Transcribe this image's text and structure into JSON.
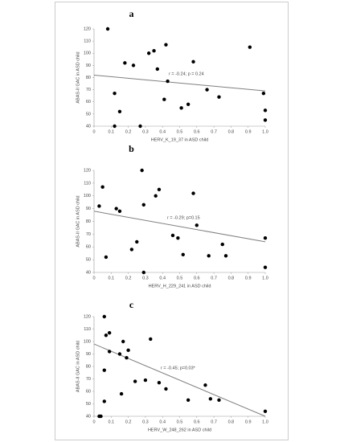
{
  "chart_data": [
    {
      "type": "scatter",
      "title": "a",
      "x_label": "HERV_K_19_37 in ASD child",
      "y_label": "ABAS-II GAC in ASD child",
      "annotation": "r = -0.24; p = 0.24",
      "x": [
        0.08,
        0.12,
        0.15,
        0.12,
        0.18,
        0.23,
        0.32,
        0.35,
        0.37,
        0.42,
        0.43,
        0.41,
        0.27,
        0.51,
        0.55,
        0.58,
        0.66,
        0.73,
        0.91,
        0.99,
        1.0,
        1.0
      ],
      "values": [
        120,
        67,
        52,
        40,
        92,
        90,
        100,
        102,
        87,
        107,
        77,
        62,
        40,
        55,
        58,
        93,
        70,
        64,
        105,
        67,
        53,
        45
      ],
      "trend": {
        "x": [
          0,
          1
        ],
        "y": [
          82,
          69
        ]
      },
      "color": "#000000",
      "trend_color": "#7f7f7f",
      "xlim": [
        0,
        1
      ],
      "ylim": [
        40,
        120
      ],
      "xticks": [
        0,
        0.1,
        0.2,
        0.3,
        0.4,
        0.5,
        0.6,
        0.7,
        0.8,
        0.9,
        {
          "value": 1,
          "label": "1.0"
        }
      ],
      "yticks": [
        40,
        50,
        60,
        70,
        80,
        90,
        100,
        110,
        120
      ],
      "grid": false
    },
    {
      "type": "scatter",
      "title": "b",
      "x_label": "HERV_H_229_241 in ASD child",
      "y_label": "ABAS-II GAC in ASD child",
      "annotation": "r = -0.29; p=0.15",
      "x": [
        0.03,
        0.05,
        0.07,
        0.13,
        0.15,
        0.22,
        0.25,
        0.28,
        0.29,
        0.29,
        0.36,
        0.38,
        0.46,
        0.49,
        0.52,
        0.58,
        0.6,
        0.67,
        0.75,
        0.77,
        1.0,
        1.0
      ],
      "values": [
        92,
        107,
        52,
        90,
        88,
        58,
        64,
        120,
        93,
        40,
        100,
        105,
        69,
        67,
        54,
        102,
        77,
        53,
        62,
        53,
        67,
        44
      ],
      "trend": {
        "x": [
          0,
          1
        ],
        "y": [
          88,
          64
        ]
      },
      "color": "#000000",
      "trend_color": "#7f7f7f",
      "xlim": [
        0,
        1
      ],
      "ylim": [
        40,
        120
      ],
      "xticks": [
        0,
        0.1,
        0.2,
        0.3,
        0.4,
        0.5,
        0.6,
        0.7,
        0.8,
        0.9,
        {
          "value": 1,
          "label": "1.0"
        }
      ],
      "yticks": [
        40,
        50,
        60,
        70,
        80,
        90,
        100,
        110,
        120
      ],
      "grid": false
    },
    {
      "type": "scatter",
      "title": "c",
      "x_label": "HERV_W_248_262 in ASD child",
      "y_label": "ABAS-II GAC in ASD child",
      "annotation": "r = -0.45; p=0.03*",
      "x": [
        0.03,
        0.04,
        0.06,
        0.06,
        0.06,
        0.07,
        0.09,
        0.09,
        0.15,
        0.16,
        0.17,
        0.19,
        0.2,
        0.24,
        0.3,
        0.33,
        0.38,
        0.42,
        0.55,
        0.65,
        0.68,
        0.73,
        1.0
      ],
      "values": [
        40,
        40,
        120,
        77,
        52,
        105,
        107,
        92,
        90,
        58,
        100,
        87,
        93,
        68,
        69,
        102,
        67,
        62,
        53,
        65,
        54,
        53,
        44
      ],
      "trend": {
        "x": [
          0,
          1
        ],
        "y": [
          98,
          40
        ]
      },
      "color": "#000000",
      "trend_color": "#7f7f7f",
      "xlim": [
        0,
        1
      ],
      "ylim": [
        40,
        120
      ],
      "xticks": [
        0,
        0.1,
        0.2,
        0.3,
        0.4,
        0.5,
        0.6,
        0.7,
        0.8,
        0.9,
        {
          "value": 1,
          "label": "1.0"
        }
      ],
      "yticks": [
        40,
        50,
        60,
        70,
        80,
        90,
        100,
        110,
        120
      ],
      "grid": false
    }
  ]
}
